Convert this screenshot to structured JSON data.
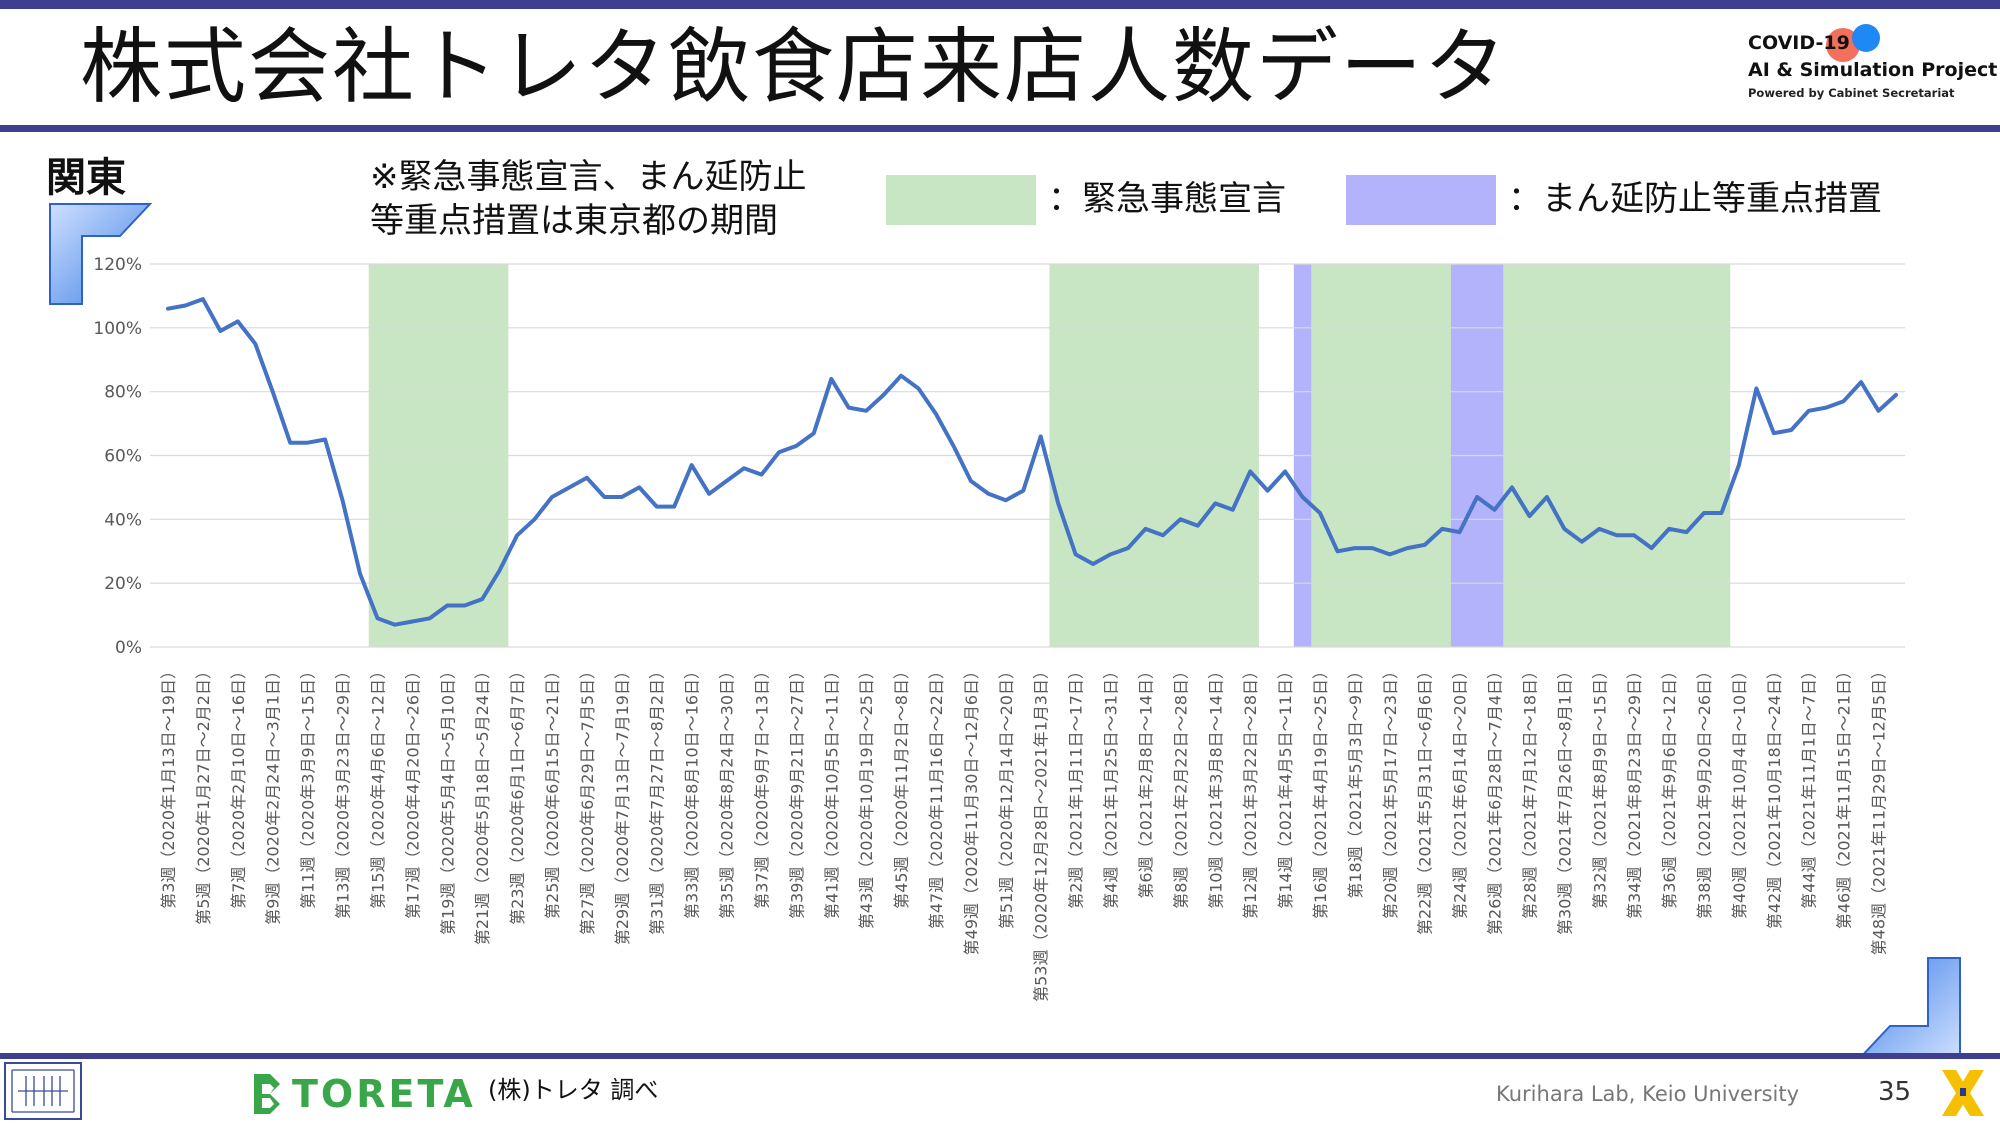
{
  "header": {
    "title": "株式会社トレタ飲食店来店人数データ",
    "project_line1": "COVID-19",
    "project_line2": "AI & Simulation Project",
    "project_line3": "Powered by Cabinet Secretariat"
  },
  "region_label": "関東",
  "note_line1": "※緊急事態宣言、まん延防止",
  "note_line2": "等重点措置は東京都の期間",
  "legend": [
    {
      "label": "：緊急事態宣言",
      "color": "#c8e6c4"
    },
    {
      "label": "：まん延防止等重点措置",
      "color": "#b3b3fb"
    }
  ],
  "colors": {
    "line": "#4472c4",
    "emergency": "#c8e6c4",
    "priority": "#b3b3fb",
    "rule": "#3f3f8f"
  },
  "footer": {
    "brand": "TORETA",
    "source": "(株)トレタ 調べ",
    "credit": "Kurihara Lab, Keio University",
    "page": "35"
  },
  "chart_data": {
    "type": "line",
    "ylabel": "",
    "xlabel": "",
    "ylim": [
      0,
      120
    ],
    "yticks": [
      0,
      20,
      40,
      60,
      80,
      100,
      120
    ],
    "ytick_labels": [
      "0%",
      "20%",
      "40%",
      "60%",
      "80%",
      "100%",
      "120%"
    ],
    "grid": true,
    "series": [
      {
        "values": [
          106,
          107,
          109,
          99,
          102,
          95,
          80,
          64,
          64,
          65,
          46,
          23,
          9,
          7,
          8,
          9,
          13,
          13,
          15,
          24,
          35,
          40,
          47,
          50,
          53,
          47,
          47,
          50,
          44,
          44,
          57,
          48,
          52,
          56,
          54,
          61,
          63,
          67,
          84,
          75,
          74,
          79,
          85,
          81,
          73,
          63,
          52,
          48,
          46,
          49,
          66,
          45,
          29,
          26,
          29,
          31,
          37,
          35,
          40,
          38,
          45,
          43,
          55,
          49,
          55,
          47,
          42,
          30,
          31,
          31,
          29,
          31,
          32,
          37,
          36,
          47,
          43,
          50,
          41,
          47,
          37,
          33,
          37,
          35,
          35,
          31,
          37,
          36,
          42,
          42,
          57,
          81,
          67,
          68,
          74,
          75,
          77,
          83,
          74,
          79
        ]
      }
    ],
    "x_label_indices": [
      0,
      2,
      4,
      6,
      8,
      10,
      12,
      14,
      16,
      18,
      20,
      22,
      24,
      26,
      28,
      30,
      32,
      34,
      36,
      38,
      40,
      42,
      44,
      46,
      48,
      50,
      52,
      54,
      56,
      58,
      60,
      62,
      64,
      66,
      68,
      70,
      72,
      74,
      76,
      78,
      80,
      82,
      84,
      86,
      88,
      90,
      92,
      94,
      96,
      98
    ],
    "x_labels": [
      "第3週（2020年1月13日～19日）",
      "第5週（2020年1月27日～2月2日）",
      "第7週（2020年2月10日～16日）",
      "第9週（2020年2月24日～3月1日）",
      "第11週（2020年3月9日～15日）",
      "第13週（2020年3月23日～29日）",
      "第15週（2020年4月6日～12日）",
      "第17週（2020年4月20日～26日）",
      "第19週（2020年5月4日～5月10日）",
      "第21週（2020年5月18日～5月24日）",
      "第23週（2020年6月1日～6月7日）",
      "第25週（2020年6月15日～21日）",
      "第27週（2020年6月29日～7月5日）",
      "第29週（2020年7月13日～7月19日）",
      "第31週（2020年7月27日～8月2日）",
      "第33週（2020年8月10日～16日）",
      "第35週（2020年8月24日～30日）",
      "第37週（2020年9月7日～13日）",
      "第39週（2020年9月21日～27日）",
      "第41週（2020年10月5日～11日）",
      "第43週（2020年10月19日～25日）",
      "第45週（2020年11月2日～8日）",
      "第47週（2020年11月16日～22日）",
      "第49週（2020年11月30日～12月6日）",
      "第51週（2020年12月14日～20日）",
      "第53週（2020年12月28日～2021年1月3日）",
      "第2週（2021年1月11日～17日）",
      "第4週（2021年1月25日～31日）",
      "第6週（2021年2月8日～14日）",
      "第8週（2021年2月22日～28日）",
      "第10週（2021年3月8日～14日）",
      "第12週（2021年3月22日～28日）",
      "第14週（2021年4月5日～11日）",
      "第16週（2021年4月19日～25日）",
      "第18週（2021年5月3日～9日）",
      "第20週（2021年5月17日～23日）",
      "第22週（2021年5月31日～6月6日）",
      "第24週（2021年6月14日～20日）",
      "第26週（2021年6月28日～7月4日）",
      "第28週（2021年7月12日～18日）",
      "第30週（2021年7月26日～8月1日）",
      "第32週（2021年8月9日～15日）",
      "第34週（2021年8月23日～29日）",
      "第36週（2021年9月6日～12日）",
      "第38週（2021年9月20日～26日）",
      "第40週（2021年10月4日～10日）",
      "第42週（2021年10月18日～24日）",
      "第44週（2021年11月1日～7日）",
      "第46週（2021年11月15日～21日）",
      "第48週（2021年11月29日～12月5日）"
    ],
    "shaded_periods": [
      {
        "type": "emergency",
        "start": 12,
        "end": 19
      },
      {
        "type": "emergency",
        "start": 51,
        "end": 62
      },
      {
        "type": "priority",
        "start": 65,
        "end": 66
      },
      {
        "type": "emergency",
        "start": 66,
        "end": 74
      },
      {
        "type": "priority",
        "start": 74,
        "end": 77
      },
      {
        "type": "emergency",
        "start": 77,
        "end": 89
      }
    ]
  }
}
